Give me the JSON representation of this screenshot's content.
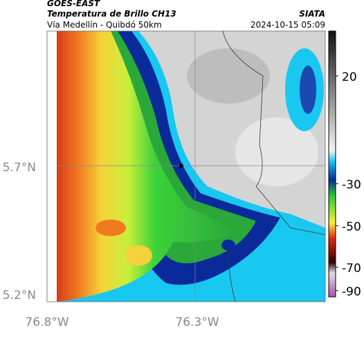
{
  "header": {
    "product": "GOES-EAST",
    "title": "Temperatura de Brillo CH13",
    "org": "SIATA",
    "subtitle": "Vía Medellín - Quibdó 50km",
    "timestamp": "2024-10-15 05:09"
  },
  "map": {
    "lat_ticks": [
      "5.7°N",
      "5.2°N"
    ],
    "lon_ticks": [
      "76.8°W",
      "76.3°W"
    ]
  },
  "colorbar": {
    "ticks": [
      "20",
      "-30",
      "-50",
      "-70",
      "-90"
    ]
  }
}
